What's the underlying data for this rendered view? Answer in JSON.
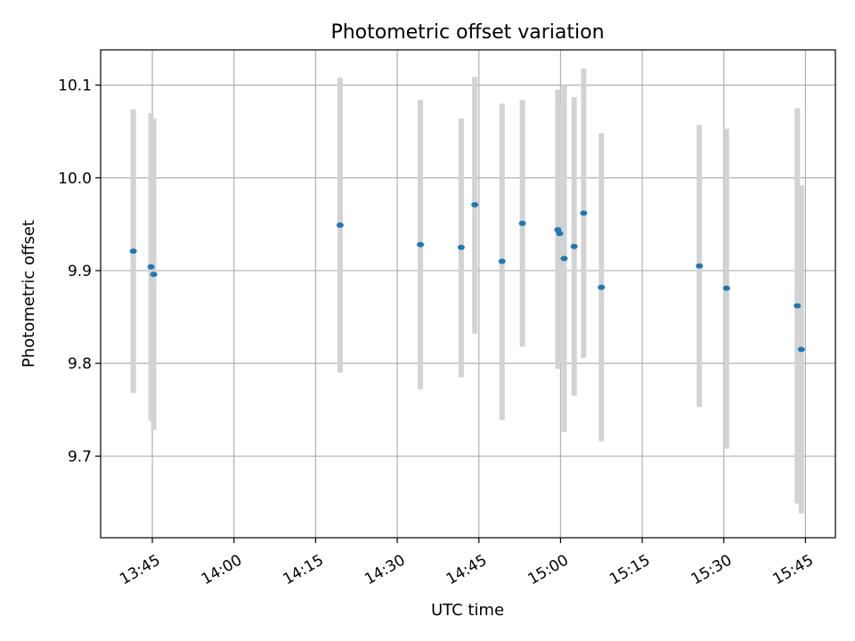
{
  "chart_data": {
    "type": "scatter",
    "title": "Photometric offset variation",
    "xlabel": "UTC time",
    "ylabel": "Photometric offset",
    "x_tick_labels": [
      "13:45",
      "14:00",
      "14:15",
      "14:30",
      "14:45",
      "15:00",
      "15:15",
      "15:30",
      "15:45"
    ],
    "x_ticks_minutes": [
      825,
      840,
      855,
      870,
      885,
      900,
      915,
      930,
      945
    ],
    "y_tick_labels": [
      "9.7",
      "9.8",
      "9.9",
      "10.0",
      "10.1"
    ],
    "y_ticks": [
      9.7,
      9.8,
      9.9,
      10.0,
      10.1
    ],
    "xlim_minutes": [
      815.5,
      950.5
    ],
    "ylim": [
      9.612,
      10.138
    ],
    "grid": true,
    "colors": {
      "point": "#1f77b4",
      "errorbar": "#d3d3d3",
      "grid": "#b0b0b0"
    },
    "series": [
      {
        "points": [
          {
            "x": "13:41:30",
            "y": 9.921,
            "lo": 9.768,
            "hi": 10.074
          },
          {
            "x": "13:44:45",
            "y": 9.904,
            "lo": 9.738,
            "hi": 10.07
          },
          {
            "x": "13:45:15",
            "y": 9.896,
            "lo": 9.728,
            "hi": 10.064
          },
          {
            "x": "14:19:30",
            "y": 9.949,
            "lo": 9.79,
            "hi": 10.108
          },
          {
            "x": "14:34:15",
            "y": 9.928,
            "lo": 9.772,
            "hi": 10.084
          },
          {
            "x": "14:41:45",
            "y": 9.925,
            "lo": 9.785,
            "hi": 10.064
          },
          {
            "x": "14:44:15",
            "y": 9.971,
            "lo": 9.832,
            "hi": 10.109
          },
          {
            "x": "14:49:15",
            "y": 9.91,
            "lo": 9.739,
            "hi": 10.08
          },
          {
            "x": "14:53:00",
            "y": 9.951,
            "lo": 9.818,
            "hi": 10.084
          },
          {
            "x": "14:59:30",
            "y": 9.944,
            "lo": 9.794,
            "hi": 10.095
          },
          {
            "x": "14:59:50",
            "y": 9.94,
            "lo": 9.8,
            "hi": 10.08
          },
          {
            "x": "15:00:40",
            "y": 9.913,
            "lo": 9.726,
            "hi": 10.1
          },
          {
            "x": "15:02:30",
            "y": 9.926,
            "lo": 9.765,
            "hi": 10.087
          },
          {
            "x": "15:04:15",
            "y": 9.962,
            "lo": 9.806,
            "hi": 10.118
          },
          {
            "x": "15:07:30",
            "y": 9.882,
            "lo": 9.716,
            "hi": 10.048
          },
          {
            "x": "15:25:30",
            "y": 9.905,
            "lo": 9.753,
            "hi": 10.057
          },
          {
            "x": "15:30:30",
            "y": 9.881,
            "lo": 9.708,
            "hi": 10.053
          },
          {
            "x": "15:43:30",
            "y": 9.862,
            "lo": 9.649,
            "hi": 10.075
          },
          {
            "x": "15:44:15",
            "y": 9.815,
            "lo": 9.638,
            "hi": 9.992
          }
        ]
      }
    ]
  }
}
